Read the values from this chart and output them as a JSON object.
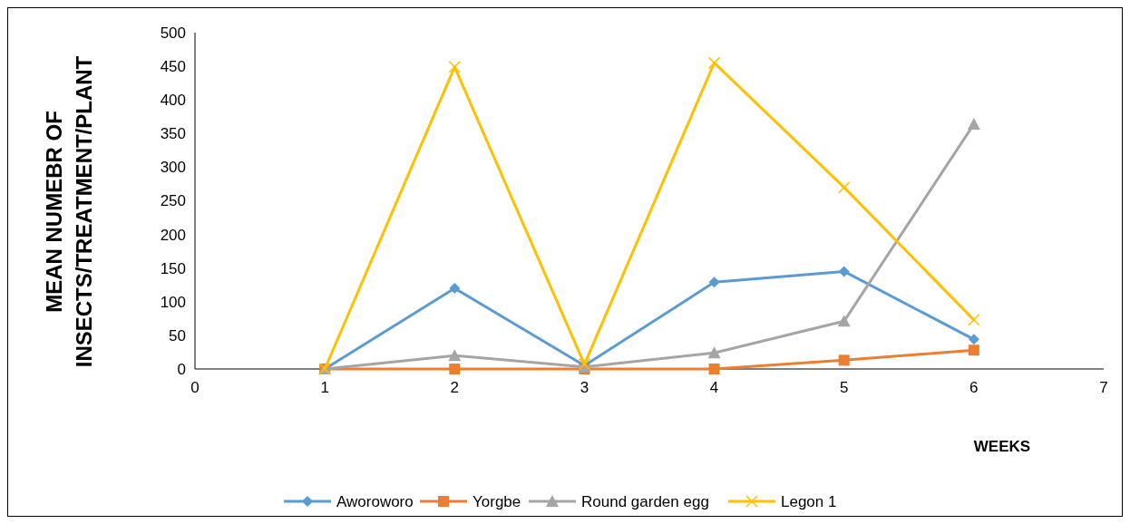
{
  "chart_data": {
    "type": "line",
    "xlabel": "WEEKS",
    "ylabel": "MEAN NUMEBR OF\nINSECTS/TREATMENT/PLANT",
    "x": [
      1,
      2,
      3,
      4,
      5,
      6
    ],
    "series": [
      {
        "name": "Aworoworo",
        "color": "#5b9bd5",
        "marker": "diamond",
        "values": [
          0,
          120,
          5,
          129,
          145,
          44
        ]
      },
      {
        "name": "Yorgbe",
        "color": "#ed7d31",
        "marker": "square",
        "values": [
          0,
          0,
          0,
          0,
          13,
          28
        ]
      },
      {
        "name": "Round garden egg",
        "color": "#a5a5a5",
        "marker": "triangle",
        "values": [
          0,
          20,
          3,
          24,
          71,
          364
        ]
      },
      {
        "name": "Legon 1",
        "color": "#ffc000",
        "marker": "cross",
        "values": [
          0,
          449,
          7,
          455,
          270,
          73
        ]
      }
    ],
    "xlim": [
      0,
      7
    ],
    "xticks": [
      0,
      1,
      2,
      3,
      4,
      5,
      6,
      7
    ],
    "ylim": [
      0,
      500
    ],
    "yticks": [
      0,
      50,
      100,
      150,
      200,
      250,
      300,
      350,
      400,
      450,
      500
    ],
    "grid": false,
    "legend": "bottom"
  }
}
